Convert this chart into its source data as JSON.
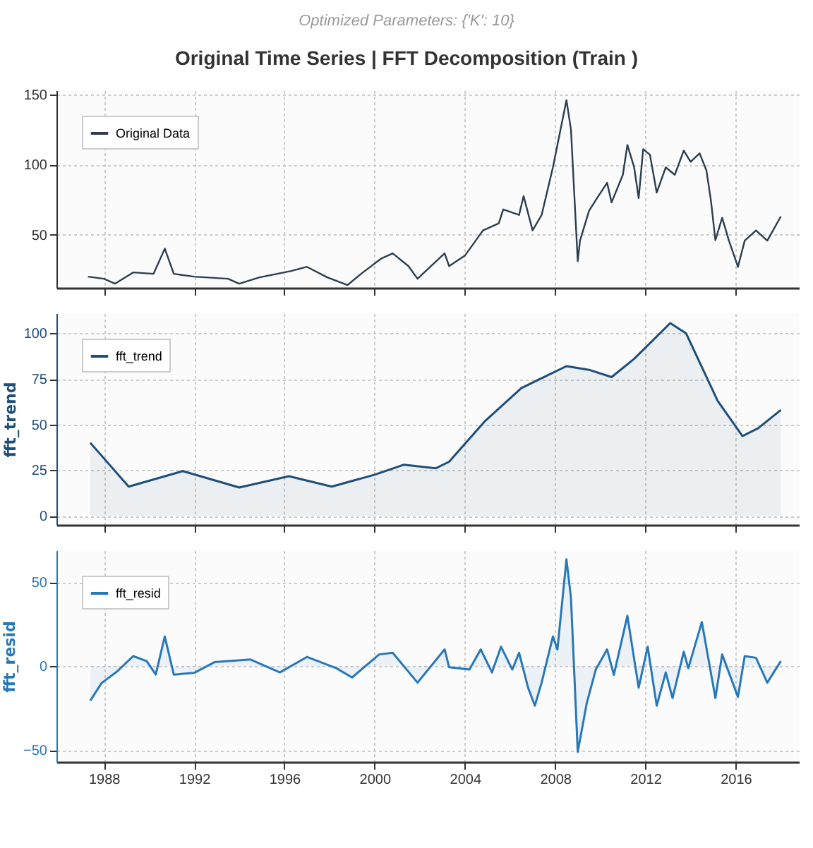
{
  "chart_data": [
    {
      "type": "line",
      "title": "Original Time Series | FFT Decomposition (Train )",
      "subtitle": "Optimized Parameters: {'K': 10}",
      "x": [
        1987.3,
        1988.0,
        1988.5,
        1989.3,
        1990.2,
        1990.7,
        1991.1,
        1992.0,
        1993.5,
        1994.0,
        1994.9,
        1996.3,
        1997.0,
        1997.9,
        1998.8,
        1999.4,
        2000.3,
        2000.8,
        2001.5,
        2001.9,
        2002.5,
        2003.1,
        2003.3,
        2004.0,
        2004.8,
        2005.5,
        2005.7,
        2006.4,
        2006.6,
        2007.0,
        2007.4,
        2007.9,
        2008.5,
        2008.7,
        2009.0,
        2009.1,
        2009.5,
        2009.8,
        2010.3,
        2010.5,
        2011.0,
        2011.2,
        2011.5,
        2011.7,
        2011.9,
        2012.2,
        2012.5,
        2012.9,
        2013.3,
        2013.7,
        2014.0,
        2014.4,
        2014.7,
        2014.9,
        2015.1,
        2015.4,
        2015.7,
        2016.1,
        2016.4,
        2016.9,
        2017.4,
        2018.0
      ],
      "series": [
        {
          "name": "Original Data",
          "color": "#2c3e50",
          "values": [
            20,
            18.5,
            15,
            23,
            22,
            40,
            22,
            20,
            18.5,
            15,
            19.5,
            24,
            27,
            19.5,
            14,
            22,
            33,
            36.6,
            27.5,
            18.5,
            27.5,
            36.6,
            27.5,
            35,
            53,
            58,
            68,
            64,
            77.5,
            53,
            64,
            98,
            146,
            125,
            31,
            45.7,
            67,
            74.6,
            87,
            73,
            92.7,
            114,
            98,
            76,
            111,
            107,
            80,
            98,
            92.7,
            110,
            102,
            108,
            96,
            74.6,
            46,
            62,
            45.7,
            27,
            45.7,
            53,
            45.7,
            63
          ]
        }
      ],
      "xlim": [
        1985.9,
        2018.8
      ],
      "xticks": [
        1988,
        1992,
        1996,
        2000,
        2004,
        2008,
        2012,
        2016
      ],
      "ylim": [
        12,
        153
      ],
      "yticks": [
        50,
        100,
        150
      ],
      "grid": true,
      "legend": "top left",
      "tick_labels": "y"
    },
    {
      "type": "area",
      "ylabel": "fft_trend",
      "x": [
        1987.4,
        1989.1,
        1991.5,
        1994.0,
        1996.2,
        1998.1,
        2000.0,
        2001.3,
        2002.7,
        2003.3,
        2004.9,
        2006.5,
        2008.5,
        2009.5,
        2010.5,
        2011.5,
        2013.1,
        2013.8,
        2015.2,
        2016.3,
        2017.0,
        2018.0
      ],
      "series": [
        {
          "name": "fft_trend",
          "color": "#1f4e79",
          "values": [
            40,
            16,
            24.5,
            15.5,
            21.7,
            16,
            22.5,
            28,
            26,
            29.6,
            52,
            70,
            82,
            80,
            76,
            86,
            105.6,
            100,
            63,
            43.7,
            48,
            58
          ]
        }
      ],
      "xlim": [
        1985.9,
        2018.8
      ],
      "xticks": [
        1988,
        1992,
        1996,
        2000,
        2004,
        2008,
        2012,
        2016
      ],
      "ylim": [
        -5,
        111
      ],
      "yticks": [
        0,
        25,
        50,
        75,
        100
      ],
      "grid": true,
      "legend": "top left",
      "tick_labels": "y"
    },
    {
      "type": "area",
      "ylabel": "fft_resid",
      "x": [
        1987.4,
        1987.9,
        1988.6,
        1989.3,
        1989.9,
        1990.3,
        1990.7,
        1991.1,
        1992.0,
        1992.9,
        1994.5,
        1995.8,
        1997.0,
        1998.3,
        1999.0,
        2000.2,
        2000.8,
        2001.9,
        2003.1,
        2003.3,
        2004.2,
        2004.7,
        2005.2,
        2005.6,
        2006.1,
        2006.4,
        2006.8,
        2007.1,
        2007.4,
        2007.9,
        2008.1,
        2008.5,
        2008.7,
        2009.0,
        2009.4,
        2009.8,
        2010.3,
        2010.6,
        2011.2,
        2011.7,
        2012.1,
        2012.5,
        2012.9,
        2013.2,
        2013.7,
        2013.9,
        2014.5,
        2015.1,
        2015.4,
        2016.1,
        2016.4,
        2016.9,
        2017.4,
        2018.0
      ],
      "series": [
        {
          "name": "fft_resid",
          "color": "#2878b8",
          "values": [
            -20.5,
            -10,
            -3,
            6,
            3,
            -5,
            17.7,
            -5,
            -4,
            2.4,
            4,
            -3.7,
            5.5,
            -1.2,
            -6.7,
            7,
            8,
            -9.8,
            10,
            -0.6,
            -2,
            10,
            -3.7,
            11.6,
            -2,
            8,
            -12.8,
            -23.5,
            -9.8,
            17.7,
            10,
            63.6,
            40.7,
            -51,
            -22,
            -2,
            10,
            -5.2,
            30,
            -12.8,
            11.6,
            -23.5,
            -3.7,
            -19,
            8.6,
            -1.2,
            26.3,
            -19,
            7,
            -18.3,
            6,
            5,
            -9.8,
            3
          ]
        }
      ],
      "xlim": [
        1985.9,
        2018.8
      ],
      "xticks": [
        1988,
        1992,
        1996,
        2000,
        2004,
        2008,
        2012,
        2016
      ],
      "ylim": [
        -57,
        69
      ],
      "yticks": [
        -50,
        0,
        50
      ],
      "grid": true,
      "legend": "top left"
    }
  ]
}
